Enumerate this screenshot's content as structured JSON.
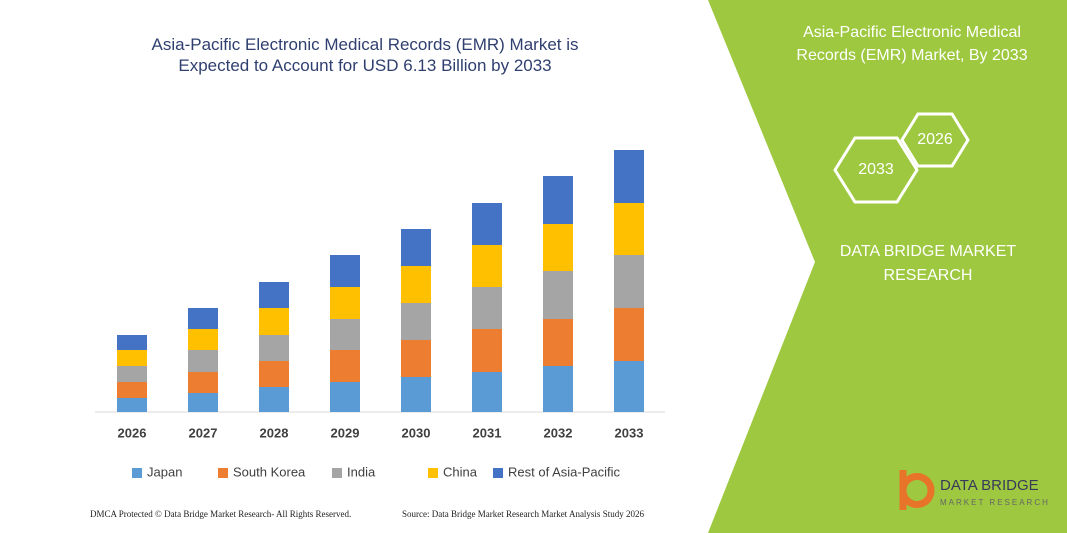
{
  "chart_data": {
    "type": "bar",
    "stacked": true,
    "title": "Asia-Pacific Electronic Medical Records (EMR) Market is Expected to Account for USD 6.13 Billion by 2033",
    "categories": [
      "2026",
      "2027",
      "2028",
      "2029",
      "2030",
      "2031",
      "2032",
      "2033"
    ],
    "series": [
      {
        "name": "Japan",
        "color": "#5b9bd5",
        "values": [
          14,
          19,
          25,
          30,
          35,
          40,
          46,
          51
        ]
      },
      {
        "name": "South Korea",
        "color": "#ed7d31",
        "values": [
          16,
          21,
          26,
          32,
          37,
          43,
          47,
          53
        ]
      },
      {
        "name": "India",
        "color": "#a5a5a5",
        "values": [
          16,
          22,
          26,
          31,
          37,
          42,
          48,
          53
        ]
      },
      {
        "name": "China",
        "color": "#ffc000",
        "values": [
          16,
          21,
          27,
          32,
          37,
          42,
          47,
          52
        ]
      },
      {
        "name": "Rest of Asia-Pacific",
        "color": "#4472c4",
        "values": [
          15,
          21,
          26,
          32,
          37,
          42,
          48,
          53
        ]
      }
    ]
  },
  "side_panel": {
    "title": "Asia-Pacific Electronic Medical Records (EMR) Market, By 2033",
    "hexagons": [
      "2033",
      "2026"
    ],
    "brand": "DATA BRIDGE MARKET RESEARCH"
  },
  "logo": {
    "name": "DATA BRIDGE",
    "tagline": "MARKET RESEARCH"
  },
  "footer": {
    "left": "DMCA Protected © Data Bridge Market Research- All Rights Reserved.",
    "right": "Source: Data Bridge Market Research Market Analysis Study 2026"
  }
}
